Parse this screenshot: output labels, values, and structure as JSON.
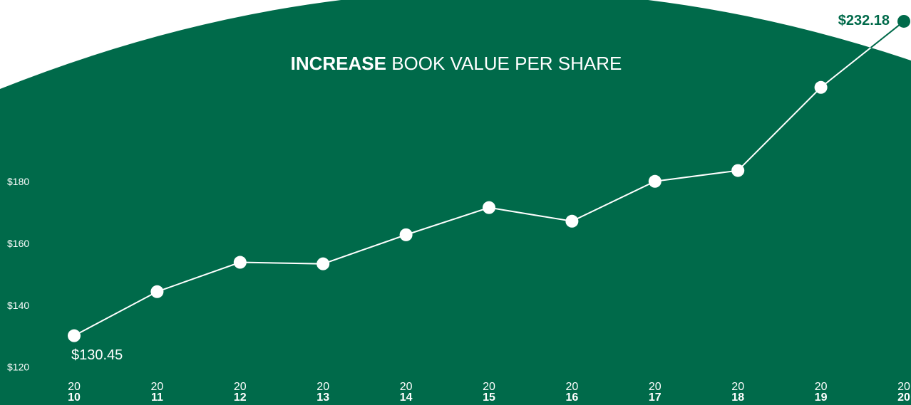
{
  "chart_data": {
    "type": "line",
    "title_emphasis": "INCREASE",
    "title": "BOOK VALUE PER SHARE",
    "categories": [
      [
        "20",
        "10"
      ],
      [
        "20",
        "11"
      ],
      [
        "20",
        "12"
      ],
      [
        "20",
        "13"
      ],
      [
        "20",
        "14"
      ],
      [
        "20",
        "15"
      ],
      [
        "20",
        "16"
      ],
      [
        "20",
        "17"
      ],
      [
        "20",
        "18"
      ],
      [
        "20",
        "19"
      ],
      [
        "20",
        "20"
      ]
    ],
    "values": [
      130.45,
      144.7,
      154.2,
      153.7,
      163.1,
      171.9,
      167.5,
      180.4,
      183.9,
      210.8,
      232.18
    ],
    "value_labels": [
      "$130.45",
      null,
      null,
      null,
      null,
      null,
      null,
      null,
      null,
      null,
      "$232.18"
    ],
    "color": "#ffffff",
    "background_color": "#006a4a",
    "ylim": [
      120,
      240
    ],
    "yticks": [
      {
        "value": 120,
        "label": "$120"
      },
      {
        "value": 140,
        "label": "$140"
      },
      {
        "value": 160,
        "label": "$160"
      },
      {
        "value": 180,
        "label": "$180"
      }
    ],
    "grid": false
  }
}
